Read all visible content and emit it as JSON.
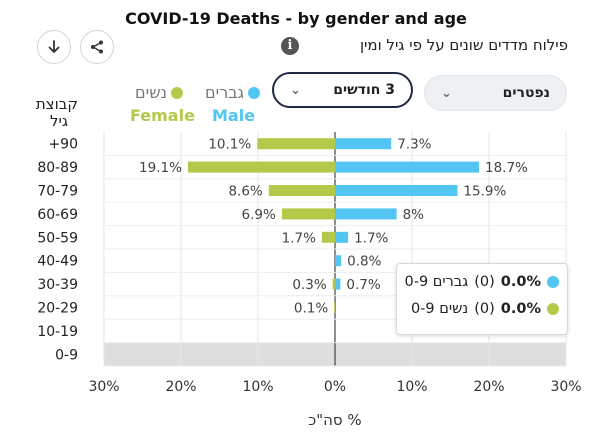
{
  "header": {
    "title": "COVID-19 Deaths - by gender and age",
    "subtitle": "פילוח מדדים שונים על פי גיל ומין",
    "info": "i"
  },
  "toolbar": {
    "download_icon": "download-icon",
    "share_icon": "share-icon"
  },
  "filters": {
    "period": "3 חודשים",
    "metric": "נפטרים"
  },
  "legend": {
    "male_he": "גברים",
    "female_he": "נשים",
    "male_en": "Male",
    "female_en": "Female"
  },
  "y_axis_title": "קבוצת גיל",
  "x_axis_title": "% סה\"כ",
  "tooltip": {
    "male_value": "0.0%",
    "male_count": "(0)",
    "male_label": "גברים 0-9",
    "female_value": "0.0%",
    "female_count": "(0)",
    "female_label": "נשים 0-9"
  },
  "colors": {
    "male": "#52c5f2",
    "female": "#b5c84a",
    "highlight_row": "#dedede"
  },
  "chart_data": {
    "type": "bar",
    "orientation": "horizontal-butterfly",
    "categories": [
      "+90",
      "80-89",
      "70-79",
      "60-69",
      "50-59",
      "40-49",
      "30-39",
      "20-29",
      "10-19",
      "0-9"
    ],
    "series": [
      {
        "name": "Female",
        "values": [
          10.1,
          19.1,
          8.6,
          6.9,
          1.7,
          0,
          0.3,
          0.1,
          0,
          0
        ],
        "labels": [
          "10.1%",
          "19.1%",
          "8.6%",
          "6.9%",
          "1.7%",
          "",
          "0.3%",
          "0.1%",
          "",
          ""
        ]
      },
      {
        "name": "Male",
        "values": [
          7.3,
          18.7,
          15.9,
          8,
          1.7,
          0.8,
          0.7,
          0,
          0,
          0
        ],
        "labels": [
          "7.3%",
          "18.7%",
          "15.9%",
          "8%",
          "1.7%",
          "0.8%",
          "0.7%",
          "",
          "",
          ""
        ]
      }
    ],
    "xlim": [
      -30,
      30
    ],
    "x_ticks": [
      "30%",
      "20%",
      "10%",
      "0%",
      "10%",
      "20%",
      "30%"
    ],
    "grid": true,
    "highlighted_category": "0-9"
  }
}
